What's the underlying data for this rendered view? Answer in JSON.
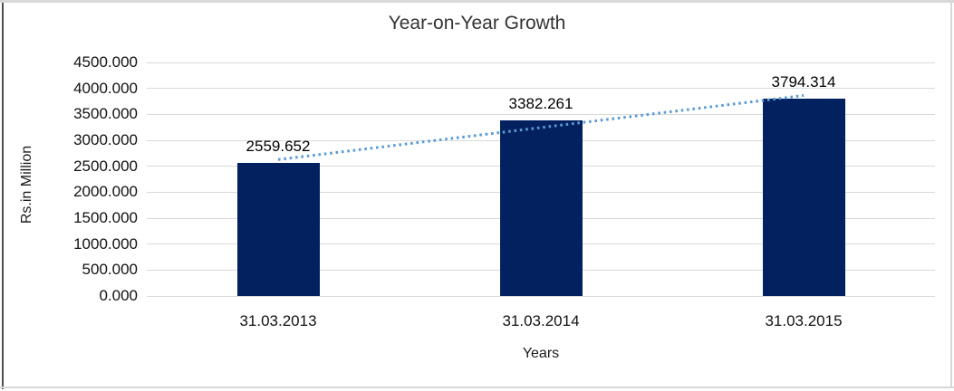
{
  "chart_data": {
    "type": "bar",
    "title": "Year-on-Year Growth",
    "categories": [
      "31.03.2013",
      "31.03.2014",
      "31.03.2015"
    ],
    "values": [
      2559.652,
      3382.261,
      3794.314
    ],
    "data_labels": [
      "2559.652",
      "3382.261",
      "3794.314"
    ],
    "xlabel": "Years",
    "ylabel": "Rs.in Million",
    "ylim": [
      0,
      4500
    ],
    "ytick_step": 500,
    "ytick_decimals": 3,
    "grid": true,
    "legend": "none",
    "bar_color": "#02215e",
    "gridline_color": "#d9d9d9",
    "trendline": {
      "type": "linear",
      "style": "dotted",
      "color": "#5b9bd5"
    }
  }
}
